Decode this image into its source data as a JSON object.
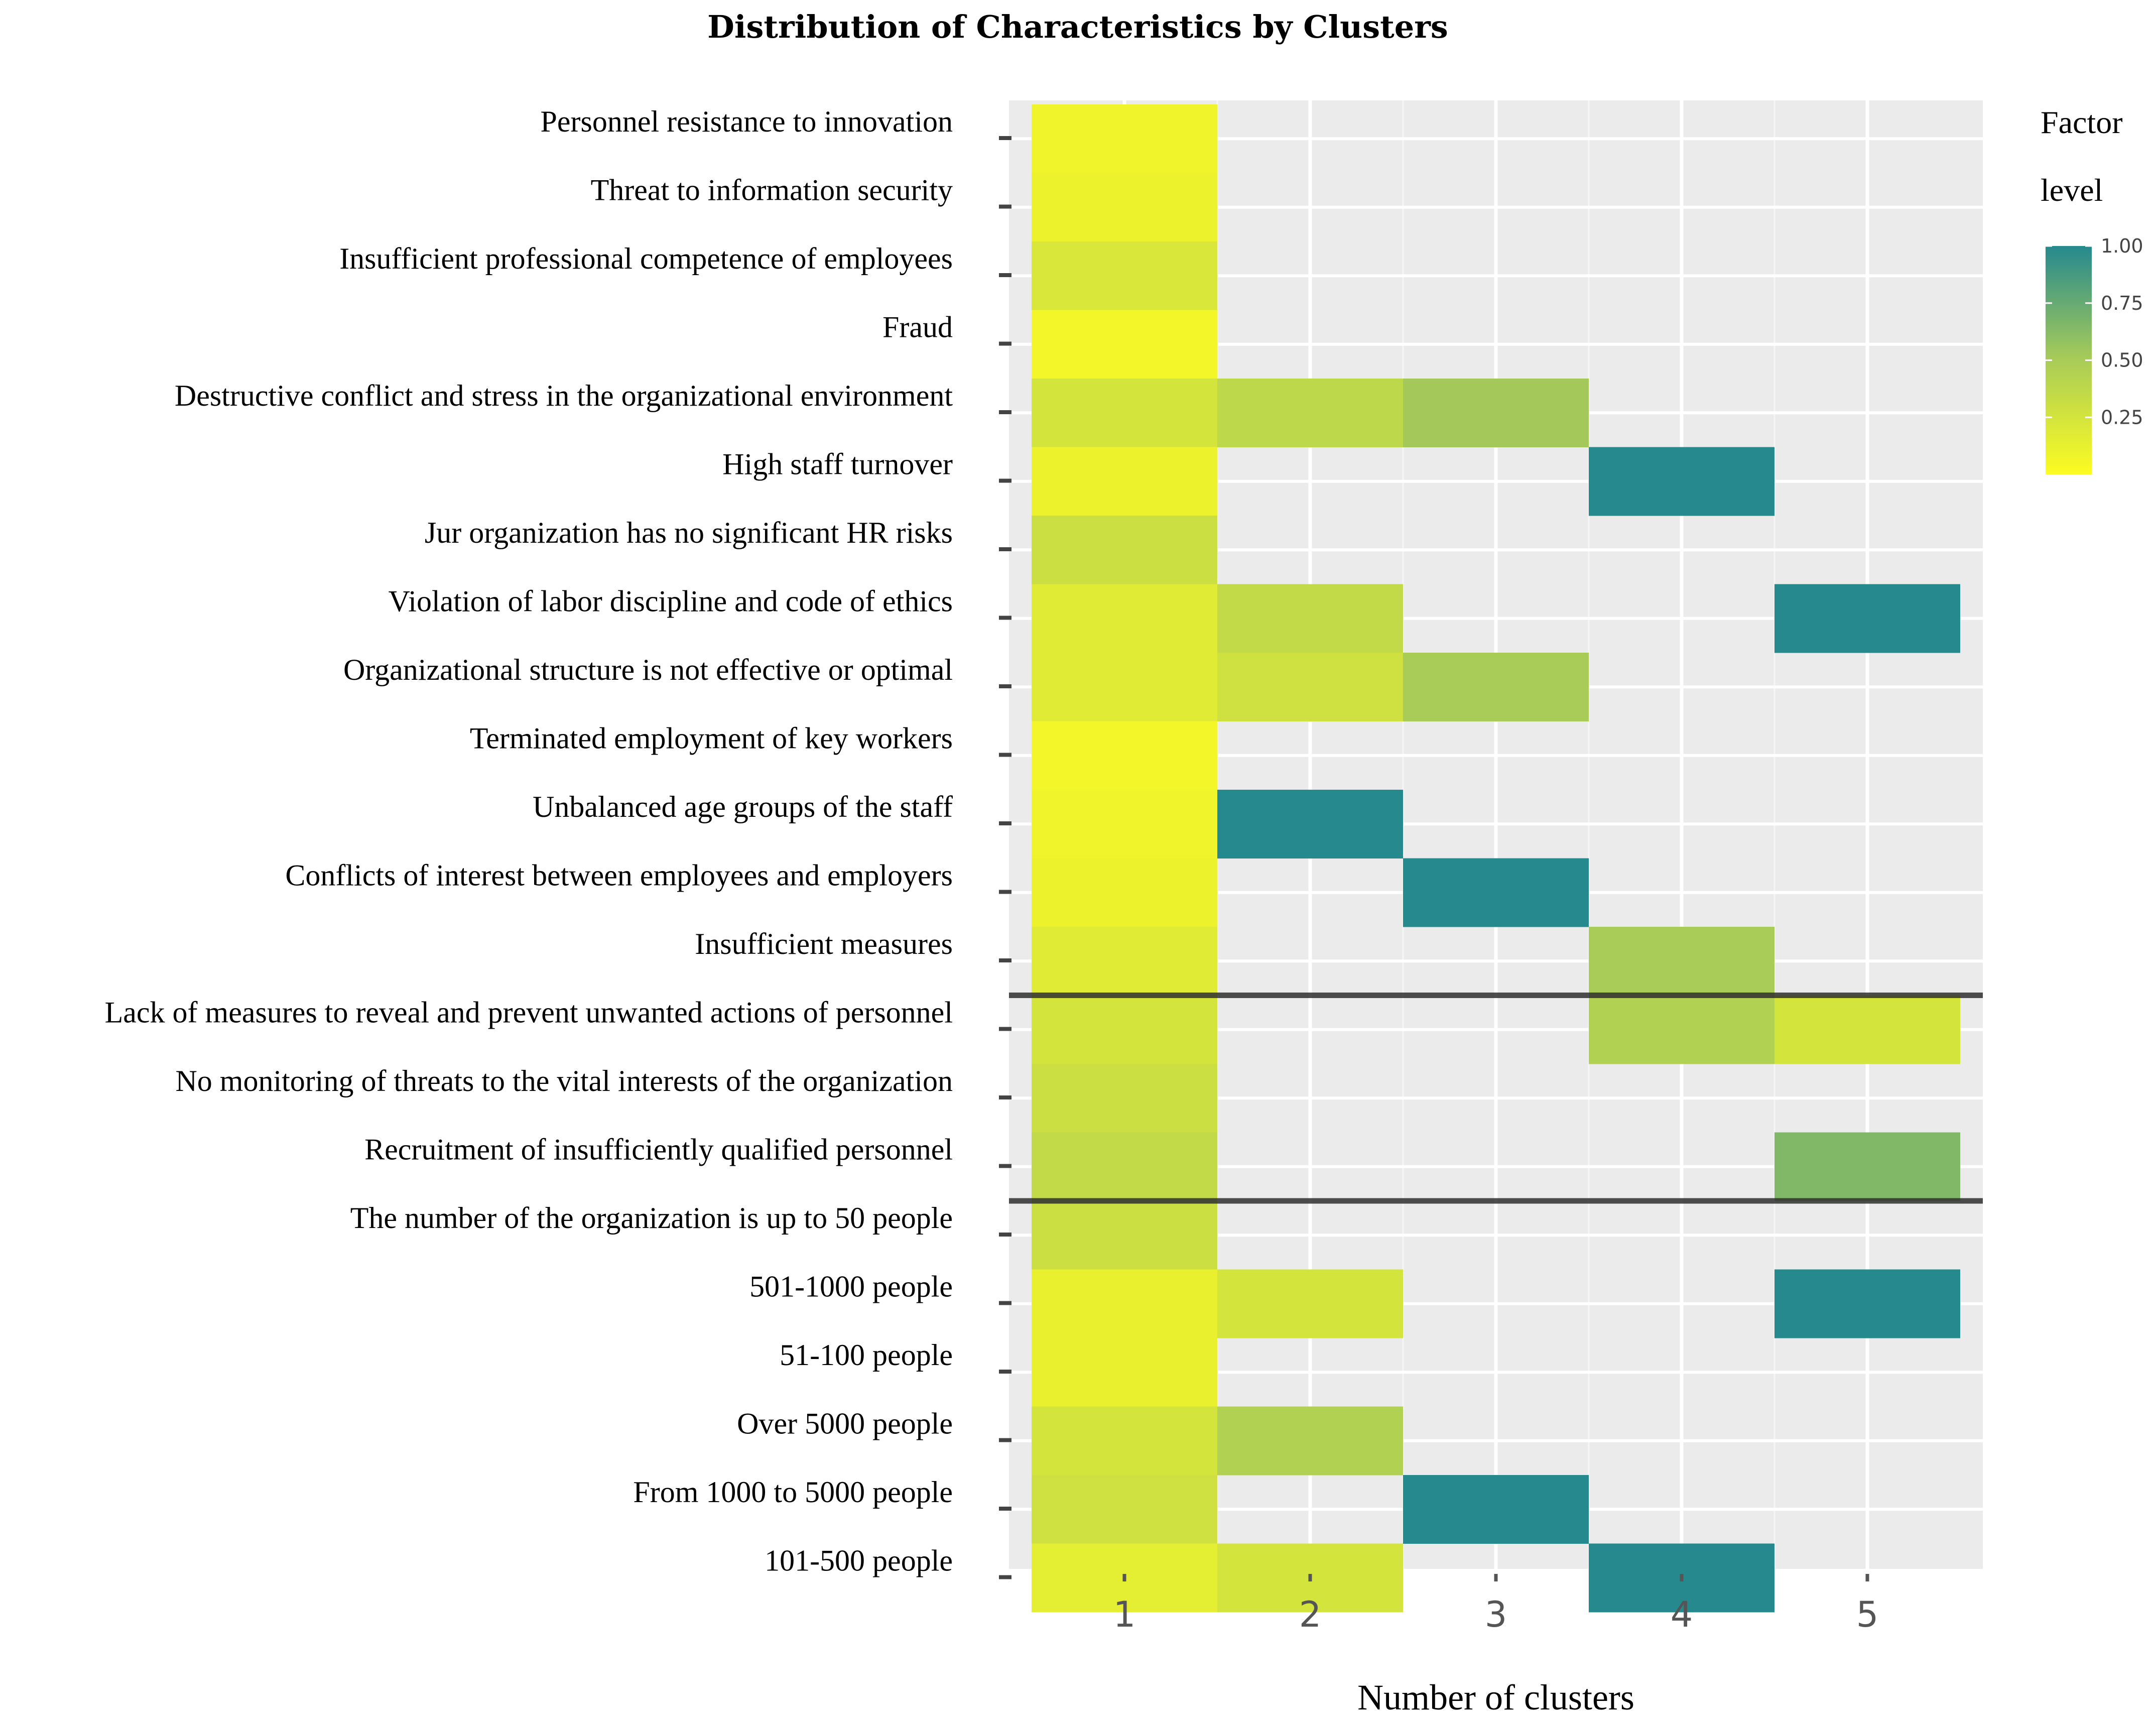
{
  "chart_data": {
    "type": "heatmap",
    "title": "Distribution of Characteristics by Clusters",
    "xlabel": "Number of clusters",
    "ylabel": "",
    "x_categories": [
      "1",
      "2",
      "3",
      "4",
      "5"
    ],
    "y_categories": [
      "Personnel resistance to innovation",
      "Threat to information security",
      "Insufficient professional competence of employees",
      "Fraud",
      "Destructive conflict and stress in the organizational environment",
      "High staff turnover",
      "Jur organization has no significant HR risks",
      "Violation of labor discipline and code of ethics",
      "Organizational structure is not effective or optimal",
      "Terminated employment of key workers",
      "Unbalanced age groups of the staff",
      "Conflicts of interest between employees and employers",
      "Insufficient measures",
      "Lack of measures to reveal and prevent unwanted actions of personnel",
      "No monitoring of threats to the vital interests of the organization",
      "Recruitment of insufficiently qualified personnel",
      "The number of the organization is up to 50 people",
      "501-1000 people",
      "51-100 people",
      "Over 5000 people",
      "From 1000 to 5000 people",
      "101-500 people"
    ],
    "values": [
      [
        0.08,
        null,
        null,
        null,
        null
      ],
      [
        0.1,
        null,
        null,
        null,
        null
      ],
      [
        0.22,
        null,
        null,
        null,
        null
      ],
      [
        0.06,
        null,
        null,
        null,
        null
      ],
      [
        0.25,
        0.38,
        0.52,
        null,
        null
      ],
      [
        0.1,
        null,
        null,
        1.0,
        null
      ],
      [
        0.3,
        null,
        null,
        null,
        null
      ],
      [
        0.18,
        0.35,
        null,
        null,
        1.0
      ],
      [
        0.18,
        0.28,
        0.5,
        null,
        null
      ],
      [
        0.06,
        null,
        null,
        null,
        null
      ],
      [
        0.08,
        1.0,
        null,
        null,
        null
      ],
      [
        0.1,
        null,
        1.0,
        null,
        null
      ],
      [
        0.18,
        null,
        null,
        0.5,
        null
      ],
      [
        0.25,
        null,
        null,
        0.45,
        0.25
      ],
      [
        0.3,
        null,
        null,
        null,
        null
      ],
      [
        0.35,
        null,
        null,
        null,
        0.65
      ],
      [
        0.3,
        null,
        null,
        null,
        null
      ],
      [
        0.12,
        0.25,
        null,
        null,
        1.0
      ],
      [
        0.12,
        null,
        null,
        null,
        null
      ],
      [
        0.25,
        0.45,
        null,
        null,
        null
      ],
      [
        0.28,
        null,
        1.0,
        null,
        null
      ],
      [
        0.15,
        0.25,
        null,
        1.0,
        null
      ]
    ],
    "color_scale": {
      "low": "#fdfc21",
      "mid": "#a9cc58",
      "high": "#25898e",
      "range": [
        0,
        1
      ]
    },
    "legend": {
      "title_line1": "Factor",
      "title_line2": "level",
      "ticks": [
        "1.00",
        "0.75",
        "0.50",
        "0.25"
      ],
      "placement": "right"
    },
    "separators_after_rows": [
      12,
      15
    ]
  }
}
